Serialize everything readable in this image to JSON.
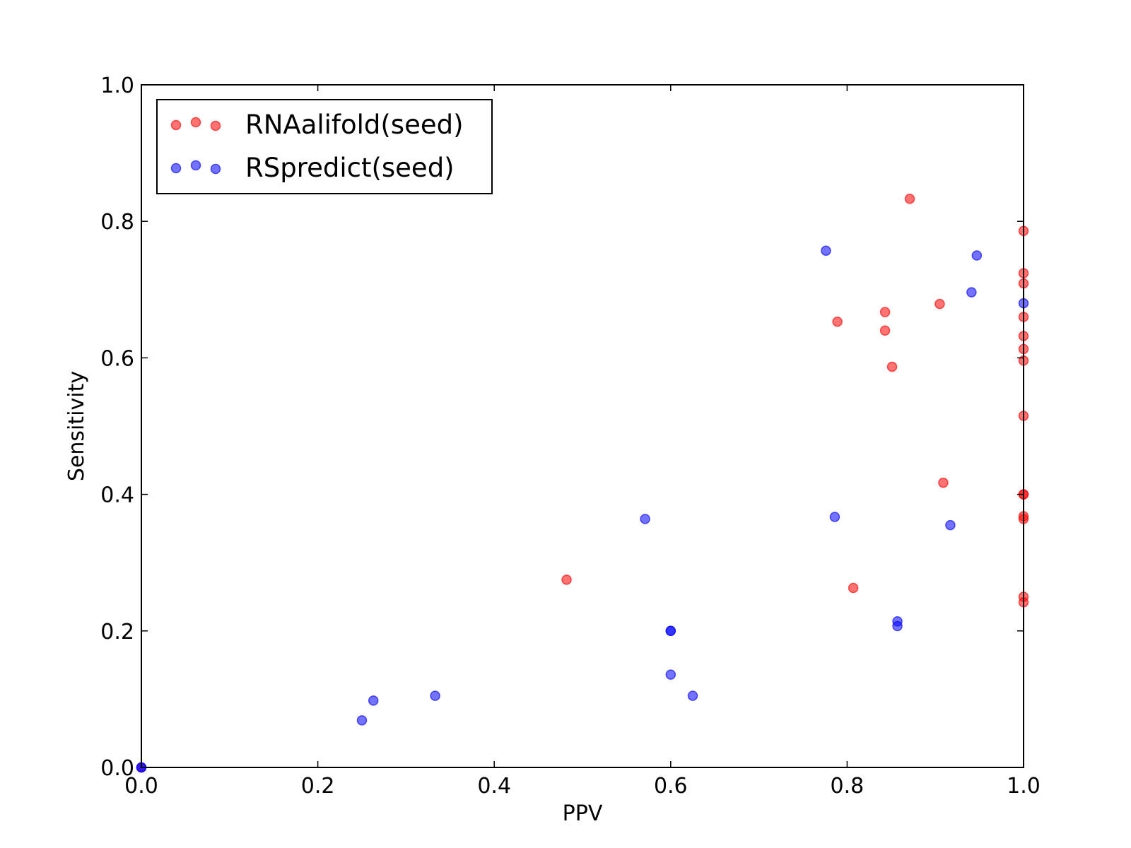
{
  "chart_data": {
    "type": "scatter",
    "title": "",
    "xlabel": "PPV",
    "ylabel": "Sensitivity",
    "xlim": [
      0.0,
      1.0
    ],
    "ylim": [
      0.0,
      1.0
    ],
    "xticks": [
      "0.0",
      "0.2",
      "0.4",
      "0.6",
      "0.8",
      "1.0"
    ],
    "yticks": [
      "0.0",
      "0.2",
      "0.4",
      "0.6",
      "0.8",
      "1.0"
    ],
    "grid": false,
    "legend_position": "top-left",
    "series": [
      {
        "name": "RNAalifold(seed)",
        "color": "#ff0000",
        "opacity": 0.55,
        "points": [
          [
            0.0,
            0.0
          ],
          [
            0.482,
            0.275
          ],
          [
            0.807,
            0.263
          ],
          [
            0.789,
            0.653
          ],
          [
            0.843,
            0.667
          ],
          [
            0.843,
            0.64
          ],
          [
            0.851,
            0.587
          ],
          [
            0.871,
            0.833
          ],
          [
            0.905,
            0.679
          ],
          [
            0.909,
            0.417
          ],
          [
            1.0,
            0.786
          ],
          [
            1.0,
            0.724
          ],
          [
            1.0,
            0.709
          ],
          [
            1.0,
            0.66
          ],
          [
            1.0,
            0.632
          ],
          [
            1.0,
            0.613
          ],
          [
            1.0,
            0.596
          ],
          [
            1.0,
            0.515
          ],
          [
            1.0,
            0.4
          ],
          [
            1.0,
            0.4
          ],
          [
            1.0,
            0.368
          ],
          [
            1.0,
            0.364
          ],
          [
            1.0,
            0.25
          ],
          [
            1.0,
            0.242
          ]
        ]
      },
      {
        "name": "RSpredict(seed)",
        "color": "#0000ff",
        "opacity": 0.55,
        "points": [
          [
            0.0,
            0.0
          ],
          [
            0.0,
            0.0
          ],
          [
            0.25,
            0.069
          ],
          [
            0.263,
            0.098
          ],
          [
            0.333,
            0.105
          ],
          [
            0.571,
            0.364
          ],
          [
            0.6,
            0.2
          ],
          [
            0.6,
            0.2
          ],
          [
            0.6,
            0.136
          ],
          [
            0.625,
            0.105
          ],
          [
            0.776,
            0.757
          ],
          [
            0.786,
            0.367
          ],
          [
            0.857,
            0.214
          ],
          [
            0.857,
            0.207
          ],
          [
            0.917,
            0.355
          ],
          [
            0.941,
            0.696
          ],
          [
            0.947,
            0.75
          ],
          [
            1.0,
            0.68
          ]
        ]
      }
    ]
  }
}
